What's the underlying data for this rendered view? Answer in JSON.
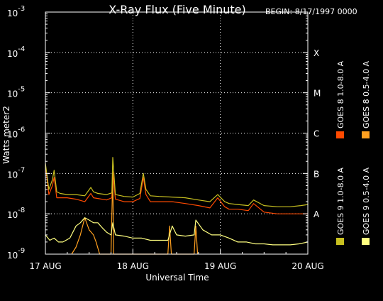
{
  "chart_data": {
    "type": "line",
    "title": "X-Ray Flux (Five Minute)",
    "begin_label": "BEGIN: 8/17/1997 0000",
    "xlabel": "Universal Time",
    "ylabel": "Watts meter2",
    "x_ticks": [
      "17 AUG",
      "18 AUG",
      "19 AUG",
      "20 AUG"
    ],
    "x_range_days": [
      0,
      3
    ],
    "y_scale": "log",
    "ylim": [
      1e-09,
      0.001
    ],
    "y_ticks": [
      {
        "base": "10",
        "exp": "-3"
      },
      {
        "base": "10",
        "exp": "-4"
      },
      {
        "base": "10",
        "exp": "-5"
      },
      {
        "base": "10",
        "exp": "-6"
      },
      {
        "base": "10",
        "exp": "-7"
      },
      {
        "base": "10",
        "exp": "-8"
      },
      {
        "base": "10",
        "exp": "-9"
      }
    ],
    "class_labels": [
      "X",
      "M",
      "C",
      "B",
      "A"
    ],
    "grid": true,
    "legend_position": "right",
    "series": [
      {
        "name": "GOES 8 1.0-8.0 A",
        "color": "#ff4a00",
        "x": [
          0.0,
          0.04,
          0.08,
          0.1,
          0.13,
          0.17,
          0.25,
          0.35,
          0.45,
          0.52,
          0.55,
          0.6,
          0.7,
          0.76,
          0.77,
          0.8,
          0.9,
          1.0,
          1.08,
          1.12,
          1.15,
          1.2,
          1.3,
          1.45,
          1.6,
          1.75,
          1.88,
          1.97,
          2.05,
          2.1,
          2.2,
          2.32,
          2.38,
          2.5,
          2.65,
          2.8,
          2.92,
          3.0
        ],
        "y": [
          1.6e-07,
          3e-08,
          5e-08,
          8e-08,
          2.5e-08,
          2.5e-08,
          2.5e-08,
          2.3e-08,
          2e-08,
          3.2e-08,
          2.5e-08,
          2.4e-08,
          2.2e-08,
          2.5e-08,
          1.1e-07,
          2.3e-08,
          2e-08,
          2e-08,
          2.4e-08,
          8e-08,
          3e-08,
          2e-08,
          2e-08,
          2e-08,
          1.8e-08,
          1.6e-08,
          1.4e-08,
          2.5e-08,
          1.5e-08,
          1.3e-08,
          1.3e-08,
          1.2e-08,
          1.8e-08,
          1.1e-08,
          1e-08,
          1e-08,
          1e-08,
          1e-08
        ]
      },
      {
        "name": "GOES 8 0.5-4.0 A",
        "color": "#ffa020",
        "x": [
          0.3,
          0.35,
          0.4,
          0.45,
          0.5,
          0.55,
          0.58,
          0.62,
          0.75,
          0.77,
          0.78,
          1.4,
          1.42,
          1.44,
          1.7,
          1.72,
          1.74
        ],
        "y": [
          1e-09,
          1.5e-09,
          3e-09,
          8e-09,
          4e-09,
          3e-09,
          2e-09,
          1e-09,
          1e-09,
          1e-07,
          1e-09,
          1e-09,
          5e-09,
          1e-09,
          1e-09,
          5e-09,
          1e-09
        ]
      },
      {
        "name": "GOES 9 1.0-8.0 A",
        "color": "#c8c020",
        "x": [
          0.0,
          0.04,
          0.08,
          0.1,
          0.13,
          0.17,
          0.25,
          0.35,
          0.45,
          0.52,
          0.55,
          0.6,
          0.7,
          0.76,
          0.77,
          0.8,
          0.9,
          1.0,
          1.08,
          1.12,
          1.15,
          1.2,
          1.3,
          1.45,
          1.6,
          1.75,
          1.88,
          1.97,
          2.05,
          2.1,
          2.2,
          2.32,
          2.38,
          2.5,
          2.65,
          2.8,
          2.92,
          3.0
        ],
        "y": [
          1.8e-07,
          4e-08,
          7e-08,
          1.2e-07,
          3.5e-08,
          3.2e-08,
          3e-08,
          3e-08,
          2.8e-08,
          4.5e-08,
          3.5e-08,
          3.2e-08,
          3e-08,
          3.3e-08,
          2.5e-07,
          3e-08,
          2.7e-08,
          2.6e-08,
          3.2e-08,
          1e-07,
          4e-08,
          2.8e-08,
          2.7e-08,
          2.6e-08,
          2.5e-08,
          2.2e-08,
          2e-08,
          3e-08,
          2e-08,
          1.8e-08,
          1.7e-08,
          1.6e-08,
          2.2e-08,
          1.6e-08,
          1.5e-08,
          1.5e-08,
          1.6e-08,
          1.7e-08
        ]
      },
      {
        "name": "GOES 9 0.5-4.0 A",
        "color": "#ffff80",
        "x": [
          0.0,
          0.05,
          0.1,
          0.15,
          0.2,
          0.28,
          0.35,
          0.4,
          0.45,
          0.5,
          0.55,
          0.6,
          0.65,
          0.7,
          0.75,
          0.77,
          0.8,
          0.9,
          1.0,
          1.1,
          1.2,
          1.3,
          1.4,
          1.45,
          1.5,
          1.6,
          1.7,
          1.72,
          1.8,
          1.9,
          2.0,
          2.1,
          2.2,
          2.3,
          2.4,
          2.5,
          2.6,
          2.7,
          2.8,
          2.9,
          3.0
        ],
        "y": [
          3e-09,
          2.2e-09,
          2.5e-09,
          2e-09,
          2e-09,
          2.5e-09,
          5e-09,
          6e-09,
          8e-09,
          7e-09,
          6e-09,
          6e-09,
          4.5e-09,
          3.5e-09,
          3e-09,
          6e-09,
          3e-09,
          2.8e-09,
          2.5e-09,
          2.5e-09,
          2.2e-09,
          2.2e-09,
          2.2e-09,
          5e-09,
          3e-09,
          2.8e-09,
          3e-09,
          7e-09,
          4e-09,
          3e-09,
          3e-09,
          2.5e-09,
          2e-09,
          2e-09,
          1.8e-09,
          1.8e-09,
          1.7e-09,
          1.7e-09,
          1.7e-09,
          1.8e-09,
          2e-09
        ]
      }
    ]
  }
}
